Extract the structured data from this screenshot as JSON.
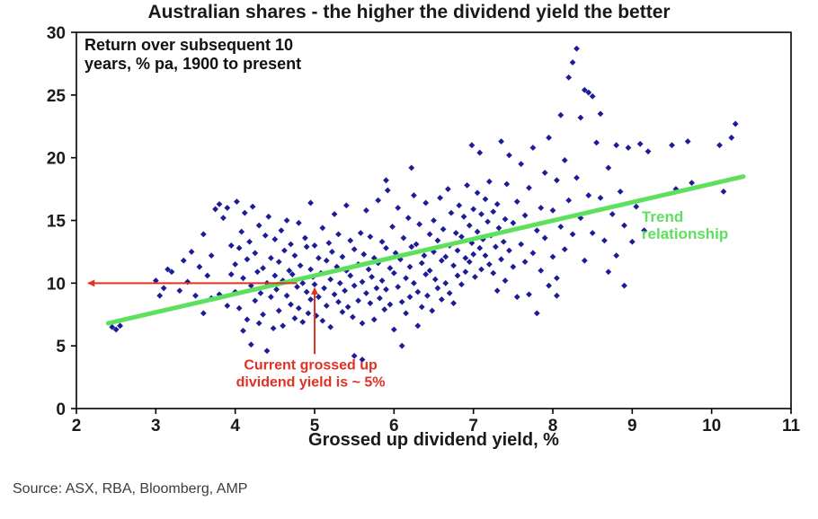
{
  "source": "Source: ASX, RBA, Bloomberg, AMP",
  "chart_data": {
    "type": "scatter",
    "title": "Australian shares - the higher the dividend yield the better",
    "note_lines": [
      "Return over subsequent 10",
      "years, % pa, 1900 to present"
    ],
    "xlabel": "Grossed up dividend yield, %",
    "ylabel": "",
    "xlim": [
      2,
      11
    ],
    "ylim": [
      0,
      30
    ],
    "x_ticks": [
      2,
      3,
      4,
      5,
      6,
      7,
      8,
      9,
      10,
      11
    ],
    "y_ticks": [
      0,
      5,
      10,
      15,
      20,
      25,
      30
    ],
    "grid": false,
    "legend_position": "none",
    "marker": {
      "shape": "diamond",
      "color": "#1c1c96",
      "size": 3.4
    },
    "colors": {
      "points": "#1c1c96",
      "trend": "#5ee05e",
      "annotation": "#e03122",
      "axis": "#000000",
      "text": "#1a1a1a"
    },
    "trend_line": {
      "from": [
        2.4,
        6.8
      ],
      "to": [
        10.4,
        18.5
      ],
      "width": 5
    },
    "trend_label": {
      "lines": [
        "Trend",
        "relationship"
      ],
      "x": 9.12,
      "y": 14.9,
      "font_size": 17,
      "line_height": 19
    },
    "annotations": {
      "horizontal_arrow": {
        "y": 10,
        "x_from": 4.78,
        "x_to": 2.15
      },
      "vertical_arrow": {
        "x": 5.0,
        "y_from": 4.35,
        "y_to": 9.6
      },
      "yield_label": {
        "lines": [
          "Current grossed up",
          "dividend yield is ~ 5%"
        ],
        "x": 4.95,
        "y": 3.1,
        "font_size": 16,
        "line_height": 19
      }
    },
    "points": [
      [
        2.45,
        6.5
      ],
      [
        2.5,
        6.3
      ],
      [
        2.55,
        6.6
      ],
      [
        3.0,
        10.2
      ],
      [
        3.05,
        9.0
      ],
      [
        3.1,
        9.6
      ],
      [
        3.15,
        11.1
      ],
      [
        3.2,
        10.9
      ],
      [
        3.3,
        9.4
      ],
      [
        3.35,
        11.8
      ],
      [
        3.4,
        10.1
      ],
      [
        3.45,
        12.5
      ],
      [
        3.5,
        9.0
      ],
      [
        3.55,
        11.3
      ],
      [
        3.6,
        13.9
      ],
      [
        3.6,
        7.6
      ],
      [
        3.65,
        10.6
      ],
      [
        3.7,
        12.2
      ],
      [
        3.7,
        8.8
      ],
      [
        3.75,
        15.9
      ],
      [
        3.8,
        16.3
      ],
      [
        3.8,
        9.1
      ],
      [
        3.85,
        15.2
      ],
      [
        3.9,
        16.0
      ],
      [
        3.9,
        8.2
      ],
      [
        3.95,
        13.0
      ],
      [
        3.95,
        10.7
      ],
      [
        4.0,
        11.5
      ],
      [
        4.0,
        9.3
      ],
      [
        4.02,
        16.5
      ],
      [
        4.05,
        12.8
      ],
      [
        4.05,
        8.0
      ],
      [
        4.08,
        14.1
      ],
      [
        4.1,
        10.4
      ],
      [
        4.1,
        6.2
      ],
      [
        4.12,
        15.6
      ],
      [
        4.15,
        11.9
      ],
      [
        4.15,
        7.1
      ],
      [
        4.18,
        13.3
      ],
      [
        4.2,
        9.8
      ],
      [
        4.2,
        5.1
      ],
      [
        4.22,
        16.1
      ],
      [
        4.25,
        12.4
      ],
      [
        4.25,
        8.6
      ],
      [
        4.28,
        10.9
      ],
      [
        4.3,
        14.6
      ],
      [
        4.3,
        6.8
      ],
      [
        4.32,
        9.2
      ],
      [
        4.35,
        11.2
      ],
      [
        4.35,
        7.5
      ],
      [
        4.38,
        13.8
      ],
      [
        4.4,
        10.0
      ],
      [
        4.4,
        4.6
      ],
      [
        4.42,
        15.3
      ],
      [
        4.45,
        8.9
      ],
      [
        4.45,
        12.0
      ],
      [
        4.48,
        6.4
      ],
      [
        4.5,
        10.6
      ],
      [
        4.5,
        13.5
      ],
      [
        4.52,
        9.5
      ],
      [
        4.55,
        11.7
      ],
      [
        4.55,
        7.8
      ],
      [
        4.58,
        14.2
      ],
      [
        4.6,
        10.2
      ],
      [
        4.6,
        6.6
      ],
      [
        4.62,
        12.6
      ],
      [
        4.65,
        9.0
      ],
      [
        4.65,
        15.0
      ],
      [
        4.68,
        11.0
      ],
      [
        4.7,
        8.3
      ],
      [
        4.7,
        13.1
      ],
      [
        4.72,
        10.7
      ],
      [
        4.75,
        7.2
      ],
      [
        4.75,
        12.2
      ],
      [
        4.78,
        9.7
      ],
      [
        4.8,
        14.8
      ],
      [
        4.8,
        8.0
      ],
      [
        4.82,
        11.4
      ],
      [
        4.85,
        10.0
      ],
      [
        4.85,
        6.9
      ],
      [
        4.88,
        13.6
      ],
      [
        4.9,
        9.3
      ],
      [
        4.9,
        12.9
      ],
      [
        4.92,
        7.6
      ],
      [
        4.95,
        11.1
      ],
      [
        4.95,
        16.4
      ],
      [
        4.95,
        8.7
      ],
      [
        4.98,
        10.5
      ],
      [
        5.0,
        13.0
      ],
      [
        5.0,
        9.9
      ],
      [
        5.02,
        7.4
      ],
      [
        5.05,
        12.0
      ],
      [
        5.05,
        8.9
      ],
      [
        5.08,
        10.8
      ],
      [
        5.1,
        14.4
      ],
      [
        5.1,
        7.0
      ],
      [
        5.12,
        9.6
      ],
      [
        5.15,
        11.8
      ],
      [
        5.15,
        8.2
      ],
      [
        5.18,
        13.2
      ],
      [
        5.2,
        10.3
      ],
      [
        5.2,
        6.5
      ],
      [
        5.22,
        12.5
      ],
      [
        5.25,
        9.1
      ],
      [
        5.25,
        15.5
      ],
      [
        5.28,
        11.3
      ],
      [
        5.3,
        8.5
      ],
      [
        5.3,
        13.9
      ],
      [
        5.32,
        10.0
      ],
      [
        5.35,
        7.7
      ],
      [
        5.35,
        12.1
      ],
      [
        5.38,
        9.4
      ],
      [
        5.4,
        16.2
      ],
      [
        5.4,
        11.0
      ],
      [
        5.42,
        8.1
      ],
      [
        5.45,
        13.4
      ],
      [
        5.45,
        10.6
      ],
      [
        5.48,
        7.3
      ],
      [
        5.5,
        12.7
      ],
      [
        5.5,
        9.8
      ],
      [
        5.5,
        4.2
      ],
      [
        5.55,
        11.5
      ],
      [
        5.55,
        8.6
      ],
      [
        5.58,
        14.0
      ],
      [
        5.6,
        10.1
      ],
      [
        5.6,
        6.8
      ],
      [
        5.6,
        3.9
      ],
      [
        5.62,
        12.3
      ],
      [
        5.65,
        9.2
      ],
      [
        5.65,
        15.8
      ],
      [
        5.68,
        11.1
      ],
      [
        5.7,
        8.4
      ],
      [
        5.7,
        13.7
      ],
      [
        5.72,
        10.5
      ],
      [
        5.75,
        7.1
      ],
      [
        5.75,
        12.0
      ],
      [
        5.78,
        9.6
      ],
      [
        5.8,
        16.6
      ],
      [
        5.8,
        11.6
      ],
      [
        5.82,
        8.8
      ],
      [
        5.85,
        13.3
      ],
      [
        5.85,
        10.2
      ],
      [
        5.88,
        7.9
      ],
      [
        5.9,
        18.2
      ],
      [
        5.9,
        12.8
      ],
      [
        5.9,
        9.5
      ],
      [
        5.92,
        17.4
      ],
      [
        5.95,
        11.2
      ],
      [
        5.95,
        8.3
      ],
      [
        5.98,
        14.5
      ],
      [
        6.0,
        10.8
      ],
      [
        6.0,
        6.3
      ],
      [
        6.02,
        12.4
      ],
      [
        6.05,
        9.7
      ],
      [
        6.05,
        16.0
      ],
      [
        6.08,
        11.9
      ],
      [
        6.1,
        8.5
      ],
      [
        6.1,
        5.0
      ],
      [
        6.12,
        13.6
      ],
      [
        6.15,
        10.4
      ],
      [
        6.15,
        7.6
      ],
      [
        6.18,
        15.2
      ],
      [
        6.2,
        11.3
      ],
      [
        6.2,
        8.9
      ],
      [
        6.22,
        19.2
      ],
      [
        6.22,
        12.9
      ],
      [
        6.25,
        10.0
      ],
      [
        6.25,
        17.0
      ],
      [
        6.28,
        13.1
      ],
      [
        6.3,
        9.3
      ],
      [
        6.3,
        6.6
      ],
      [
        6.32,
        14.7
      ],
      [
        6.35,
        11.6
      ],
      [
        6.35,
        8.1
      ],
      [
        6.38,
        12.2
      ],
      [
        6.4,
        10.7
      ],
      [
        6.4,
        16.4
      ],
      [
        6.42,
        9.0
      ],
      [
        6.45,
        13.9
      ],
      [
        6.45,
        11.0
      ],
      [
        6.48,
        7.8
      ],
      [
        6.5,
        15.0
      ],
      [
        6.5,
        12.5
      ],
      [
        6.52,
        10.3
      ],
      [
        6.55,
        13.4
      ],
      [
        6.55,
        9.6
      ],
      [
        6.58,
        16.8
      ],
      [
        6.6,
        11.8
      ],
      [
        6.6,
        8.7
      ],
      [
        6.62,
        14.3
      ],
      [
        6.65,
        12.1
      ],
      [
        6.65,
        10.0
      ],
      [
        6.68,
        17.5
      ],
      [
        6.7,
        13.0
      ],
      [
        6.7,
        9.2
      ],
      [
        6.72,
        15.6
      ],
      [
        6.75,
        11.4
      ],
      [
        6.75,
        8.4
      ],
      [
        6.78,
        14.0
      ],
      [
        6.8,
        12.6
      ],
      [
        6.8,
        10.6
      ],
      [
        6.82,
        16.2
      ],
      [
        6.85,
        13.7
      ],
      [
        6.85,
        9.9
      ],
      [
        6.88,
        15.3
      ],
      [
        6.9,
        12.0
      ],
      [
        6.9,
        10.9
      ],
      [
        6.92,
        17.8
      ],
      [
        6.95,
        14.6
      ],
      [
        6.95,
        11.7
      ],
      [
        6.98,
        21.0
      ],
      [
        6.98,
        13.2
      ],
      [
        7.0,
        15.9
      ],
      [
        7.0,
        12.3
      ],
      [
        7.02,
        10.5
      ],
      [
        7.05,
        14.1
      ],
      [
        7.05,
        17.2
      ],
      [
        7.08,
        20.4
      ],
      [
        7.08,
        12.8
      ],
      [
        7.1,
        15.5
      ],
      [
        7.1,
        11.1
      ],
      [
        7.12,
        13.5
      ],
      [
        7.15,
        16.7
      ],
      [
        7.15,
        12.2
      ],
      [
        7.18,
        14.9
      ],
      [
        7.2,
        11.5
      ],
      [
        7.2,
        18.1
      ],
      [
        7.22,
        13.8
      ],
      [
        7.25,
        15.7
      ],
      [
        7.25,
        10.8
      ],
      [
        7.28,
        12.9
      ],
      [
        7.3,
        16.3
      ],
      [
        7.3,
        9.4
      ],
      [
        7.32,
        14.4
      ],
      [
        7.35,
        11.9
      ],
      [
        7.35,
        21.3
      ],
      [
        7.38,
        13.3
      ],
      [
        7.4,
        15.1
      ],
      [
        7.4,
        10.2
      ],
      [
        7.42,
        17.9
      ],
      [
        7.45,
        12.6
      ],
      [
        7.45,
        20.2
      ],
      [
        7.5,
        14.8
      ],
      [
        7.5,
        11.3
      ],
      [
        7.55,
        16.5
      ],
      [
        7.55,
        8.9
      ],
      [
        7.6,
        13.1
      ],
      [
        7.6,
        19.5
      ],
      [
        7.65,
        11.7
      ],
      [
        7.65,
        15.4
      ],
      [
        7.7,
        9.1
      ],
      [
        7.7,
        17.6
      ],
      [
        7.75,
        12.4
      ],
      [
        7.75,
        20.8
      ],
      [
        7.8,
        14.2
      ],
      [
        7.8,
        7.6
      ],
      [
        7.85,
        16.0
      ],
      [
        7.85,
        11.0
      ],
      [
        7.9,
        18.8
      ],
      [
        7.9,
        13.6
      ],
      [
        7.95,
        9.8
      ],
      [
        7.95,
        21.6
      ],
      [
        8.0,
        15.8
      ],
      [
        8.0,
        12.1
      ],
      [
        8.05,
        18.2
      ],
      [
        8.05,
        10.4
      ],
      [
        8.05,
        9.0
      ],
      [
        8.1,
        23.4
      ],
      [
        8.1,
        14.5
      ],
      [
        8.15,
        19.8
      ],
      [
        8.15,
        12.7
      ],
      [
        8.2,
        26.4
      ],
      [
        8.2,
        16.6
      ],
      [
        8.25,
        27.6
      ],
      [
        8.25,
        13.9
      ],
      [
        8.3,
        28.7
      ],
      [
        8.3,
        18.4
      ],
      [
        8.35,
        23.2
      ],
      [
        8.35,
        15.2
      ],
      [
        8.4,
        25.4
      ],
      [
        8.4,
        11.8
      ],
      [
        8.45,
        25.2
      ],
      [
        8.45,
        17.0
      ],
      [
        8.5,
        24.9
      ],
      [
        8.5,
        14.0
      ],
      [
        8.55,
        21.2
      ],
      [
        8.6,
        16.8
      ],
      [
        8.6,
        23.5
      ],
      [
        8.65,
        13.4
      ],
      [
        8.7,
        19.2
      ],
      [
        8.7,
        10.9
      ],
      [
        8.75,
        15.5
      ],
      [
        8.8,
        21.0
      ],
      [
        8.8,
        12.2
      ],
      [
        8.85,
        17.3
      ],
      [
        8.9,
        9.8
      ],
      [
        8.9,
        14.6
      ],
      [
        8.95,
        20.8
      ],
      [
        9.0,
        13.3
      ],
      [
        9.05,
        16.1
      ],
      [
        9.1,
        21.1
      ],
      [
        9.15,
        14.2
      ],
      [
        9.2,
        20.5
      ],
      [
        9.5,
        21.0
      ],
      [
        9.55,
        17.5
      ],
      [
        9.7,
        21.3
      ],
      [
        9.75,
        18.0
      ],
      [
        10.1,
        21.0
      ],
      [
        10.15,
        17.3
      ],
      [
        10.25,
        21.6
      ],
      [
        10.3,
        22.7
      ]
    ]
  }
}
